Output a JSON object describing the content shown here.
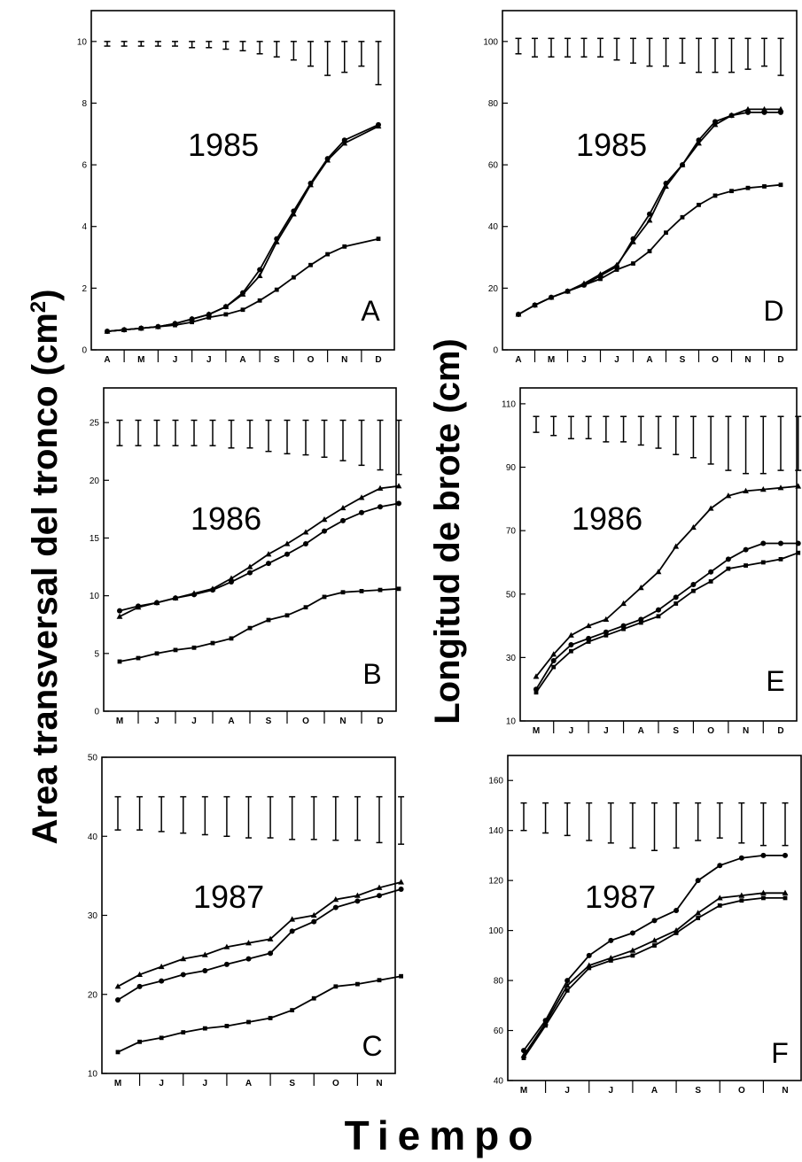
{
  "figure": {
    "ylabel_left": "Area transversal del tronco (cm",
    "ylabel_left_sup": "2",
    "ylabel_left_close": ")",
    "ylabel_right": "Longitud de brote (cm)",
    "xlabel": "Tiempo"
  },
  "chart_data": [
    {
      "id": "A",
      "type": "line",
      "letter": "A",
      "year": "1985",
      "ylim": [
        0,
        11
      ],
      "yticks": [
        0,
        2,
        4,
        6,
        8,
        10
      ],
      "categories": [
        "A",
        "M",
        "J",
        "J",
        "A",
        "S",
        "O",
        "N",
        "D"
      ],
      "x": [
        0.0,
        0.5,
        1.0,
        1.5,
        2.0,
        2.5,
        3.0,
        3.5,
        4.0,
        4.5,
        5.0,
        5.5,
        6.0,
        6.5,
        7.0,
        7.5,
        8.0
      ],
      "series": [
        {
          "values": [
            0.6,
            0.65,
            0.7,
            0.75,
            0.85,
            1.0,
            1.15,
            1.4,
            1.85,
            2.6,
            3.6,
            4.5,
            5.4,
            6.2,
            6.8,
            null,
            7.3
          ],
          "marker": "circle"
        },
        {
          "values": [
            0.6,
            0.65,
            0.7,
            0.75,
            0.85,
            1.0,
            1.15,
            1.4,
            1.8,
            2.4,
            3.5,
            4.4,
            5.35,
            6.15,
            6.7,
            null,
            7.25
          ],
          "marker": "triangle"
        },
        {
          "values": [
            0.6,
            0.65,
            0.7,
            0.75,
            0.8,
            0.9,
            1.05,
            1.15,
            1.3,
            1.6,
            1.95,
            2.35,
            2.75,
            3.1,
            3.35,
            null,
            3.6
          ],
          "marker": "square"
        }
      ],
      "error_bars": {
        "x": [
          0,
          0.5,
          1,
          1.5,
          2,
          2.5,
          3,
          3.5,
          4,
          4.5,
          5,
          5.5,
          6,
          6.5,
          7,
          7.5,
          8
        ],
        "low": [
          9.85,
          9.85,
          9.85,
          9.85,
          9.85,
          9.8,
          9.8,
          9.75,
          9.7,
          9.6,
          9.5,
          9.4,
          9.2,
          8.9,
          9.0,
          9.2,
          8.6
        ],
        "high": [
          10.0,
          10.0,
          10.0,
          10.0,
          10.0,
          10.0,
          10.0,
          10.0,
          10.0,
          10.0,
          10.0,
          10.0,
          10.0,
          10.0,
          10.0,
          10.0,
          10.0
        ]
      }
    },
    {
      "id": "D",
      "type": "line",
      "letter": "D",
      "year": "1985",
      "ylim": [
        0,
        110
      ],
      "yticks": [
        0,
        20,
        40,
        60,
        80,
        100
      ],
      "categories": [
        "A",
        "M",
        "J",
        "J",
        "A",
        "S",
        "O",
        "N",
        "D"
      ],
      "x": [
        0.0,
        0.5,
        1.0,
        1.5,
        2.0,
        2.5,
        3.0,
        3.5,
        4.0,
        4.5,
        5.0,
        5.5,
        6.0,
        6.5,
        7.0,
        7.5,
        8.0
      ],
      "series": [
        {
          "values": [
            11.5,
            14.5,
            17,
            19,
            21,
            24,
            27,
            36,
            44,
            54,
            60,
            68,
            74,
            76,
            77,
            77,
            77
          ],
          "marker": "circle"
        },
        {
          "values": [
            11.5,
            14.5,
            17,
            19,
            21.5,
            24.5,
            27.5,
            35,
            42,
            53,
            60,
            67,
            73,
            76,
            78,
            78,
            78
          ],
          "marker": "triangle"
        },
        {
          "values": [
            11.5,
            14.5,
            17,
            19,
            21,
            23,
            26,
            28,
            32,
            38,
            43,
            47,
            50,
            51.5,
            52.5,
            53,
            53.5
          ],
          "marker": "square"
        }
      ],
      "error_bars": {
        "x": [
          0,
          0.5,
          1,
          1.5,
          2,
          2.5,
          3,
          3.5,
          4,
          4.5,
          5,
          5.5,
          6,
          6.5,
          7,
          7.5,
          8
        ],
        "low": [
          96,
          95,
          95,
          95,
          95,
          95,
          94,
          93,
          92,
          92,
          93,
          90,
          90,
          90,
          91,
          92,
          89
        ],
        "high": [
          101,
          101,
          101,
          101,
          101,
          101,
          101,
          101,
          101,
          101,
          101,
          101,
          101,
          101,
          101,
          101,
          101
        ]
      }
    },
    {
      "id": "B",
      "type": "line",
      "letter": "B",
      "year": "1986",
      "ylim": [
        0,
        28
      ],
      "yticks": [
        0,
        5,
        10,
        15,
        20,
        25
      ],
      "categories": [
        "M",
        "J",
        "J",
        "A",
        "S",
        "O",
        "N",
        "D"
      ],
      "x": [
        0.0,
        0.5,
        1.0,
        1.5,
        2.0,
        2.5,
        3.0,
        3.5,
        4.0,
        4.5,
        5.0,
        5.5,
        6.0,
        6.5,
        7.0,
        7.5
      ],
      "series": [
        {
          "values": [
            8.7,
            9.1,
            9.4,
            9.8,
            10.1,
            10.5,
            11.2,
            12.0,
            12.8,
            13.6,
            14.5,
            15.6,
            16.5,
            17.2,
            17.7,
            18.0
          ],
          "marker": "circle"
        },
        {
          "values": [
            8.2,
            9.0,
            9.4,
            9.8,
            10.2,
            10.6,
            11.5,
            12.5,
            13.6,
            14.5,
            15.5,
            16.6,
            17.6,
            18.5,
            19.3,
            19.5
          ],
          "marker": "triangle"
        },
        {
          "values": [
            4.3,
            4.6,
            5.0,
            5.3,
            5.5,
            5.9,
            6.3,
            7.2,
            7.9,
            8.3,
            9.0,
            9.9,
            10.3,
            10.4,
            10.5,
            10.6
          ],
          "marker": "square"
        }
      ],
      "error_bars": {
        "x": [
          0,
          0.5,
          1,
          1.5,
          2,
          2.5,
          3,
          3.5,
          4,
          4.5,
          5,
          5.5,
          6,
          6.5,
          7,
          7.5
        ],
        "low": [
          23.0,
          23.0,
          23.0,
          23.0,
          23.0,
          23.0,
          22.8,
          22.8,
          22.5,
          22.3,
          22.2,
          22.0,
          21.7,
          21.3,
          20.9,
          20.5
        ],
        "high": [
          25.2,
          25.2,
          25.2,
          25.2,
          25.2,
          25.2,
          25.2,
          25.2,
          25.2,
          25.2,
          25.2,
          25.2,
          25.2,
          25.2,
          25.2,
          25.2
        ]
      }
    },
    {
      "id": "E",
      "type": "line",
      "letter": "E",
      "year": "1986",
      "ylim": [
        10,
        115
      ],
      "yticks": [
        10,
        30,
        50,
        70,
        90,
        110
      ],
      "categories": [
        "M",
        "J",
        "J",
        "A",
        "S",
        "O",
        "N",
        "D"
      ],
      "x": [
        0.0,
        0.5,
        1.0,
        1.5,
        2.0,
        2.5,
        3.0,
        3.5,
        4.0,
        4.5,
        5.0,
        5.5,
        6.0,
        6.5,
        7.0,
        7.5
      ],
      "series": [
        {
          "values": [
            24,
            31,
            37,
            40,
            42,
            47,
            52,
            57,
            65,
            71,
            77,
            81,
            82.5,
            83,
            83.5,
            84
          ],
          "marker": "triangle"
        },
        {
          "values": [
            20,
            29,
            34,
            36,
            38,
            40,
            42,
            45,
            49,
            53,
            57,
            61,
            64,
            66,
            66,
            66
          ],
          "marker": "circle"
        },
        {
          "values": [
            19,
            27,
            32,
            35,
            37,
            39,
            41,
            43,
            47,
            51,
            54,
            58,
            59,
            60,
            61,
            63
          ],
          "marker": "square"
        }
      ],
      "error_bars": {
        "x": [
          0,
          0.5,
          1,
          1.5,
          2,
          2.5,
          3,
          3.5,
          4,
          4.5,
          5,
          5.5,
          6,
          6.5,
          7,
          7.5
        ],
        "low": [
          101,
          100,
          99,
          99,
          98,
          98,
          97,
          96,
          94,
          93,
          91,
          89,
          88,
          88,
          89,
          89
        ],
        "high": [
          106,
          106,
          106,
          106,
          106,
          106,
          106,
          106,
          106,
          106,
          106,
          106,
          106,
          106,
          106,
          106
        ]
      }
    },
    {
      "id": "C",
      "type": "line",
      "letter": "C",
      "year": "1987",
      "ylim": [
        10,
        50
      ],
      "yticks": [
        10,
        20,
        30,
        40,
        50
      ],
      "categories": [
        "M",
        "J",
        "J",
        "A",
        "S",
        "O",
        "N"
      ],
      "x": [
        0.0,
        0.5,
        1.0,
        1.5,
        2.0,
        2.5,
        3.0,
        3.5,
        4.0,
        4.5,
        5.0,
        5.5,
        6.0,
        6.5
      ],
      "series": [
        {
          "values": [
            21.0,
            22.5,
            23.5,
            24.5,
            25.0,
            26.0,
            26.5,
            27.0,
            29.5,
            30.0,
            32.0,
            32.5,
            33.5,
            34.2
          ],
          "marker": "triangle"
        },
        {
          "values": [
            19.3,
            21.0,
            21.7,
            22.5,
            23.0,
            23.8,
            24.5,
            25.2,
            28.0,
            29.2,
            31.0,
            31.8,
            32.5,
            33.3
          ],
          "marker": "circle"
        },
        {
          "values": [
            12.7,
            14.0,
            14.5,
            15.2,
            15.7,
            16.0,
            16.5,
            17.0,
            18.0,
            19.5,
            21.0,
            21.3,
            21.8,
            22.3
          ],
          "marker": "square"
        }
      ],
      "error_bars": {
        "x": [
          0,
          0.5,
          1,
          1.5,
          2,
          2.5,
          3,
          3.5,
          4,
          4.5,
          5,
          5.5,
          6,
          6.5
        ],
        "low": [
          40.8,
          40.8,
          40.6,
          40.4,
          40.2,
          40.0,
          39.8,
          39.8,
          39.6,
          39.6,
          39.5,
          39.5,
          39.2,
          39.0
        ],
        "high": [
          45.0,
          45.0,
          45.0,
          45.0,
          45.0,
          45.0,
          45.0,
          45.0,
          45.0,
          45.0,
          45.0,
          45.0,
          45.0,
          45.0
        ]
      }
    },
    {
      "id": "F",
      "type": "line",
      "letter": "F",
      "year": "1987",
      "ylim": [
        40,
        170
      ],
      "yticks": [
        40,
        60,
        80,
        100,
        120,
        140,
        160
      ],
      "categories": [
        "M",
        "J",
        "J",
        "A",
        "S",
        "O",
        "N"
      ],
      "x": [
        0.0,
        0.5,
        1.0,
        1.5,
        2.0,
        2.5,
        3.0,
        3.5,
        4.0,
        4.5,
        5.0,
        5.5,
        6.0
      ],
      "series": [
        {
          "values": [
            52,
            64,
            80,
            90,
            96,
            99,
            104,
            108,
            120,
            126,
            129,
            130,
            130
          ],
          "marker": "circle"
        },
        {
          "values": [
            50,
            63,
            78,
            86,
            89,
            92,
            96,
            100,
            107,
            113,
            114,
            115,
            115
          ],
          "marker": "triangle"
        },
        {
          "values": [
            49,
            62,
            76,
            85,
            88,
            90,
            94,
            99,
            105,
            110,
            112,
            113,
            113
          ],
          "marker": "square"
        }
      ],
      "error_bars": {
        "x": [
          0,
          0.5,
          1,
          1.5,
          2,
          2.5,
          3,
          3.5,
          4,
          4.5,
          5,
          5.5,
          6
        ],
        "low": [
          140,
          139,
          138,
          136,
          135,
          133,
          132,
          133,
          136,
          137,
          135,
          134,
          134
        ],
        "high": [
          151,
          151,
          151,
          151,
          151,
          151,
          151,
          151,
          151,
          151,
          151,
          151,
          151
        ]
      }
    }
  ]
}
